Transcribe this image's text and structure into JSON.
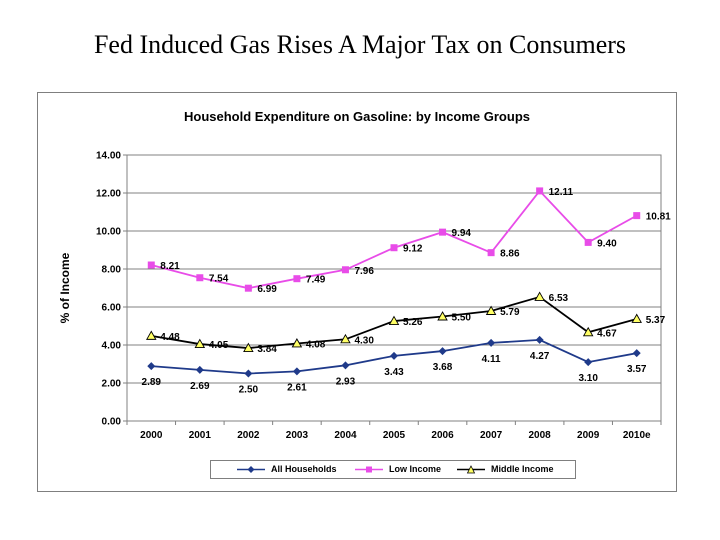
{
  "page": {
    "title": "Fed Induced Gas Rises A Major Tax on Consumers"
  },
  "chart_data": {
    "type": "line",
    "title": "Household Expenditure on Gasoline: by Income Groups",
    "xlabel": "",
    "ylabel": "% of Income",
    "categories": [
      "2000",
      "2001",
      "2002",
      "2003",
      "2004",
      "2005",
      "2006",
      "2007",
      "2008",
      "2009",
      "2010e"
    ],
    "ylim": [
      0,
      14
    ],
    "yticks": [
      "0.00",
      "2.00",
      "4.00",
      "6.00",
      "8.00",
      "10.00",
      "12.00",
      "14.00"
    ],
    "grid": true,
    "legend_position": "bottom",
    "series": [
      {
        "name": "All Households",
        "color": "#1f3a8a",
        "marker": "diamond",
        "values": [
          2.89,
          2.69,
          2.5,
          2.61,
          2.93,
          3.43,
          3.68,
          4.11,
          4.27,
          3.1,
          3.57
        ],
        "labels": [
          "2.89",
          "2.69",
          "2.50",
          "2.61",
          "2.93",
          "3.43",
          "3.68",
          "4.11",
          "4.27",
          "3.10",
          "3.57"
        ]
      },
      {
        "name": "Low Income",
        "color": "#e84ce8",
        "marker": "square",
        "values": [
          8.21,
          7.54,
          6.99,
          7.49,
          7.96,
          9.12,
          9.94,
          8.86,
          12.11,
          9.4,
          10.81
        ],
        "labels": [
          "8.21",
          "7.54",
          "6.99",
          "7.49",
          "7.96",
          "9.12",
          "9.94",
          "8.86",
          "12.11",
          "9.40",
          "10.81"
        ]
      },
      {
        "name": "Middle Income",
        "color": "#000000",
        "marker": "triangle",
        "markerFill": "#ffff66",
        "values": [
          4.48,
          4.05,
          3.84,
          4.08,
          4.3,
          5.26,
          5.5,
          5.79,
          6.53,
          4.67,
          5.37
        ],
        "labels": [
          "4.48",
          "4.05",
          "3.84",
          "4.08",
          "4.30",
          "5.26",
          "5.50",
          "5.79",
          "6.53",
          "4.67",
          "5.37"
        ]
      }
    ]
  }
}
